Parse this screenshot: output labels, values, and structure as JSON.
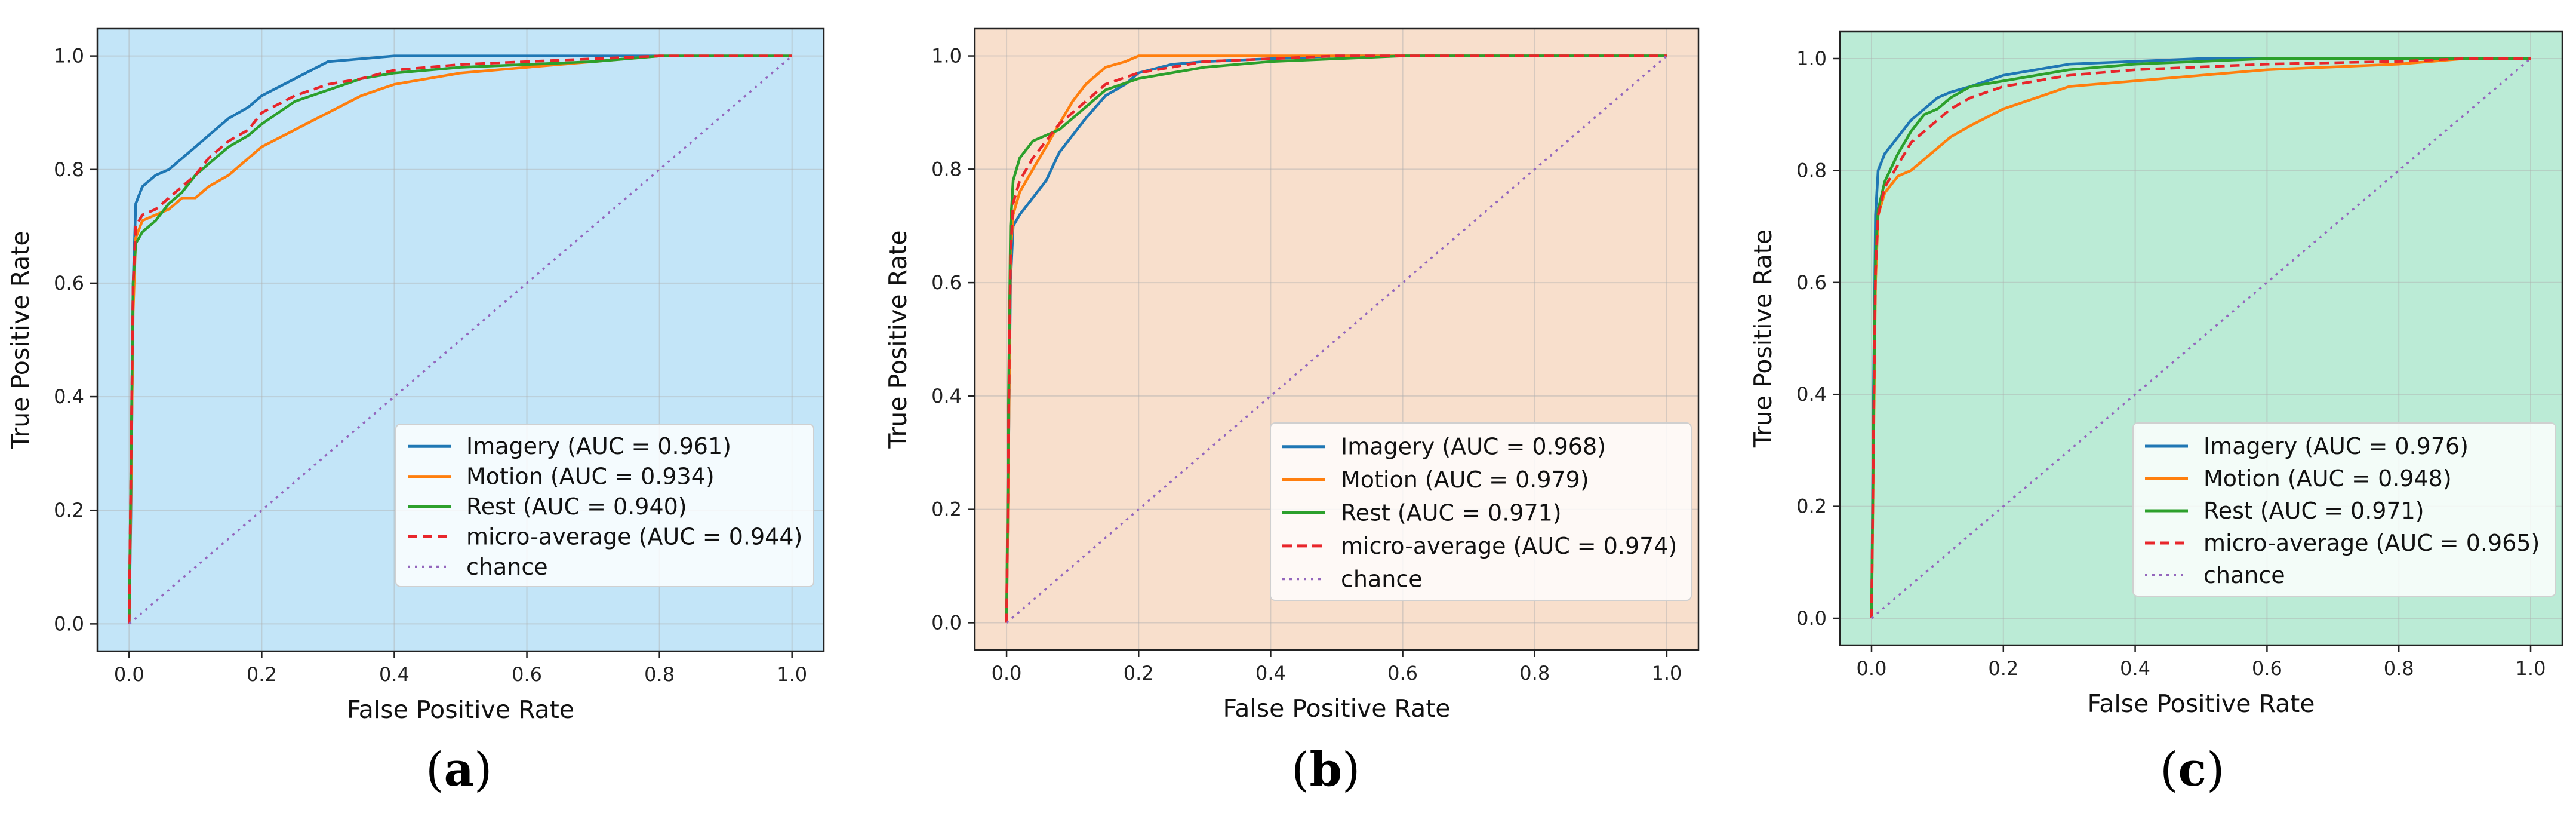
{
  "chart_data": [
    {
      "type": "line",
      "panel_label": "a",
      "background": "#c3e5f8",
      "xlabel": "False Positive Rate",
      "ylabel": "True Positive Rate",
      "xlim": [
        0,
        1
      ],
      "ylim": [
        0,
        1
      ],
      "ticks": [
        "0.0",
        "0.2",
        "0.4",
        "0.6",
        "0.8",
        "1.0"
      ],
      "grid": true,
      "legend_position": "lower-right",
      "series": [
        {
          "name": "Imagery (AUC = 0.961)",
          "color": "#1f77b4",
          "style": "solid",
          "points": [
            [
              0,
              0
            ],
            [
              0.003,
              0.22
            ],
            [
              0.006,
              0.6
            ],
            [
              0.01,
              0.74
            ],
            [
              0.02,
              0.77
            ],
            [
              0.04,
              0.79
            ],
            [
              0.06,
              0.8
            ],
            [
              0.08,
              0.82
            ],
            [
              0.1,
              0.84
            ],
            [
              0.12,
              0.86
            ],
            [
              0.15,
              0.89
            ],
            [
              0.18,
              0.91
            ],
            [
              0.2,
              0.93
            ],
            [
              0.25,
              0.96
            ],
            [
              0.3,
              0.99
            ],
            [
              0.35,
              0.995
            ],
            [
              0.4,
              1.0
            ],
            [
              1.0,
              1.0
            ]
          ]
        },
        {
          "name": "Motion (AUC = 0.934)",
          "color": "#ff7f0e",
          "style": "solid",
          "points": [
            [
              0,
              0
            ],
            [
              0.003,
              0.25
            ],
            [
              0.006,
              0.55
            ],
            [
              0.01,
              0.68
            ],
            [
              0.02,
              0.71
            ],
            [
              0.04,
              0.72
            ],
            [
              0.06,
              0.73
            ],
            [
              0.08,
              0.75
            ],
            [
              0.1,
              0.75
            ],
            [
              0.12,
              0.77
            ],
            [
              0.15,
              0.79
            ],
            [
              0.18,
              0.82
            ],
            [
              0.2,
              0.84
            ],
            [
              0.25,
              0.87
            ],
            [
              0.3,
              0.9
            ],
            [
              0.35,
              0.93
            ],
            [
              0.4,
              0.95
            ],
            [
              0.5,
              0.97
            ],
            [
              0.6,
              0.98
            ],
            [
              0.7,
              0.99
            ],
            [
              0.8,
              1.0
            ],
            [
              1.0,
              1.0
            ]
          ]
        },
        {
          "name": "Rest (AUC = 0.940)",
          "color": "#2ca02c",
          "style": "solid",
          "points": [
            [
              0,
              0
            ],
            [
              0.003,
              0.3
            ],
            [
              0.006,
              0.6
            ],
            [
              0.01,
              0.67
            ],
            [
              0.02,
              0.69
            ],
            [
              0.04,
              0.71
            ],
            [
              0.06,
              0.74
            ],
            [
              0.08,
              0.76
            ],
            [
              0.1,
              0.79
            ],
            [
              0.12,
              0.81
            ],
            [
              0.15,
              0.84
            ],
            [
              0.18,
              0.86
            ],
            [
              0.2,
              0.88
            ],
            [
              0.25,
              0.92
            ],
            [
              0.3,
              0.94
            ],
            [
              0.35,
              0.96
            ],
            [
              0.4,
              0.97
            ],
            [
              0.5,
              0.98
            ],
            [
              0.6,
              0.985
            ],
            [
              0.7,
              0.99
            ],
            [
              0.8,
              1.0
            ],
            [
              1.0,
              1.0
            ]
          ]
        },
        {
          "name": "micro-average (AUC = 0.944)",
          "color": "#e8262b",
          "style": "dashed",
          "points": [
            [
              0,
              0
            ],
            [
              0.003,
              0.3
            ],
            [
              0.006,
              0.6
            ],
            [
              0.01,
              0.7
            ],
            [
              0.02,
              0.72
            ],
            [
              0.04,
              0.73
            ],
            [
              0.06,
              0.75
            ],
            [
              0.08,
              0.77
            ],
            [
              0.1,
              0.79
            ],
            [
              0.12,
              0.82
            ],
            [
              0.15,
              0.85
            ],
            [
              0.18,
              0.87
            ],
            [
              0.2,
              0.9
            ],
            [
              0.25,
              0.93
            ],
            [
              0.3,
              0.95
            ],
            [
              0.35,
              0.96
            ],
            [
              0.4,
              0.975
            ],
            [
              0.5,
              0.985
            ],
            [
              0.6,
              0.99
            ],
            [
              0.7,
              0.995
            ],
            [
              0.8,
              1.0
            ],
            [
              1.0,
              1.0
            ]
          ]
        },
        {
          "name": "chance",
          "color": "#9467bd",
          "style": "dotted",
          "points": [
            [
              0,
              0
            ],
            [
              1,
              1
            ]
          ]
        }
      ]
    },
    {
      "type": "line",
      "panel_label": "b",
      "background": "#f8dfcc",
      "xlabel": "False Positive Rate",
      "ylabel": "True Positive Rate",
      "xlim": [
        0,
        1
      ],
      "ylim": [
        0,
        1
      ],
      "ticks": [
        "0.0",
        "0.2",
        "0.4",
        "0.6",
        "0.8",
        "1.0"
      ],
      "grid": true,
      "legend_position": "lower-right",
      "series": [
        {
          "name": "Imagery (AUC = 0.968)",
          "color": "#1f77b4",
          "style": "solid",
          "points": [
            [
              0,
              0
            ],
            [
              0.003,
              0.3
            ],
            [
              0.006,
              0.6
            ],
            [
              0.01,
              0.7
            ],
            [
              0.02,
              0.72
            ],
            [
              0.04,
              0.75
            ],
            [
              0.06,
              0.78
            ],
            [
              0.08,
              0.83
            ],
            [
              0.1,
              0.86
            ],
            [
              0.12,
              0.89
            ],
            [
              0.15,
              0.93
            ],
            [
              0.18,
              0.95
            ],
            [
              0.2,
              0.97
            ],
            [
              0.25,
              0.985
            ],
            [
              0.3,
              0.99
            ],
            [
              0.4,
              0.995
            ],
            [
              0.5,
              1.0
            ],
            [
              1.0,
              1.0
            ]
          ]
        },
        {
          "name": "Motion (AUC = 0.979)",
          "color": "#ff7f0e",
          "style": "solid",
          "points": [
            [
              0,
              0
            ],
            [
              0.003,
              0.3
            ],
            [
              0.006,
              0.65
            ],
            [
              0.01,
              0.72
            ],
            [
              0.02,
              0.76
            ],
            [
              0.04,
              0.8
            ],
            [
              0.06,
              0.84
            ],
            [
              0.08,
              0.88
            ],
            [
              0.1,
              0.92
            ],
            [
              0.12,
              0.95
            ],
            [
              0.15,
              0.98
            ],
            [
              0.18,
              0.99
            ],
            [
              0.2,
              1.0
            ],
            [
              1.0,
              1.0
            ]
          ]
        },
        {
          "name": "Rest (AUC = 0.971)",
          "color": "#2ca02c",
          "style": "solid",
          "points": [
            [
              0,
              0
            ],
            [
              0.003,
              0.4
            ],
            [
              0.006,
              0.7
            ],
            [
              0.01,
              0.78
            ],
            [
              0.02,
              0.82
            ],
            [
              0.04,
              0.85
            ],
            [
              0.06,
              0.86
            ],
            [
              0.08,
              0.87
            ],
            [
              0.1,
              0.89
            ],
            [
              0.12,
              0.91
            ],
            [
              0.15,
              0.94
            ],
            [
              0.2,
              0.96
            ],
            [
              0.25,
              0.97
            ],
            [
              0.3,
              0.98
            ],
            [
              0.4,
              0.99
            ],
            [
              0.5,
              0.995
            ],
            [
              0.6,
              1.0
            ],
            [
              1.0,
              1.0
            ]
          ]
        },
        {
          "name": "micro-average (AUC = 0.974)",
          "color": "#e8262b",
          "style": "dashed",
          "points": [
            [
              0,
              0
            ],
            [
              0.003,
              0.35
            ],
            [
              0.006,
              0.65
            ],
            [
              0.01,
              0.74
            ],
            [
              0.02,
              0.78
            ],
            [
              0.04,
              0.82
            ],
            [
              0.06,
              0.85
            ],
            [
              0.08,
              0.88
            ],
            [
              0.1,
              0.9
            ],
            [
              0.12,
              0.92
            ],
            [
              0.15,
              0.95
            ],
            [
              0.2,
              0.97
            ],
            [
              0.25,
              0.98
            ],
            [
              0.3,
              0.99
            ],
            [
              0.4,
              0.995
            ],
            [
              0.5,
              1.0
            ],
            [
              1.0,
              1.0
            ]
          ]
        },
        {
          "name": "chance",
          "color": "#9467bd",
          "style": "dotted",
          "points": [
            [
              0,
              0
            ],
            [
              1,
              1
            ]
          ]
        }
      ]
    },
    {
      "type": "line",
      "panel_label": "c",
      "background": "#bbebd6",
      "xlabel": "False Positive Rate",
      "ylabel": "True Positive Rate",
      "xlim": [
        0,
        1
      ],
      "ylim": [
        0,
        1
      ],
      "ticks": [
        "0.0",
        "0.2",
        "0.4",
        "0.6",
        "0.8",
        "1.0"
      ],
      "grid": true,
      "legend_position": "lower-right",
      "series": [
        {
          "name": "Imagery (AUC = 0.976)",
          "color": "#1f77b4",
          "style": "solid",
          "points": [
            [
              0,
              0
            ],
            [
              0.003,
              0.4
            ],
            [
              0.006,
              0.72
            ],
            [
              0.01,
              0.8
            ],
            [
              0.02,
              0.83
            ],
            [
              0.04,
              0.86
            ],
            [
              0.06,
              0.89
            ],
            [
              0.08,
              0.91
            ],
            [
              0.1,
              0.93
            ],
            [
              0.12,
              0.94
            ],
            [
              0.15,
              0.95
            ],
            [
              0.2,
              0.97
            ],
            [
              0.25,
              0.98
            ],
            [
              0.3,
              0.99
            ],
            [
              0.4,
              0.995
            ],
            [
              0.5,
              1.0
            ],
            [
              1.0,
              1.0
            ]
          ]
        },
        {
          "name": "Motion (AUC = 0.948)",
          "color": "#ff7f0e",
          "style": "solid",
          "points": [
            [
              0,
              0
            ],
            [
              0.003,
              0.3
            ],
            [
              0.006,
              0.6
            ],
            [
              0.01,
              0.72
            ],
            [
              0.02,
              0.76
            ],
            [
              0.04,
              0.79
            ],
            [
              0.06,
              0.8
            ],
            [
              0.08,
              0.82
            ],
            [
              0.1,
              0.84
            ],
            [
              0.12,
              0.86
            ],
            [
              0.15,
              0.88
            ],
            [
              0.2,
              0.91
            ],
            [
              0.25,
              0.93
            ],
            [
              0.3,
              0.95
            ],
            [
              0.4,
              0.96
            ],
            [
              0.5,
              0.97
            ],
            [
              0.6,
              0.98
            ],
            [
              0.7,
              0.985
            ],
            [
              0.8,
              0.99
            ],
            [
              0.9,
              1.0
            ],
            [
              1.0,
              1.0
            ]
          ]
        },
        {
          "name": "Rest (AUC = 0.971)",
          "color": "#2ca02c",
          "style": "solid",
          "points": [
            [
              0,
              0
            ],
            [
              0.003,
              0.35
            ],
            [
              0.006,
              0.65
            ],
            [
              0.01,
              0.73
            ],
            [
              0.02,
              0.78
            ],
            [
              0.04,
              0.83
            ],
            [
              0.06,
              0.87
            ],
            [
              0.08,
              0.9
            ],
            [
              0.1,
              0.91
            ],
            [
              0.12,
              0.93
            ],
            [
              0.15,
              0.95
            ],
            [
              0.2,
              0.96
            ],
            [
              0.25,
              0.97
            ],
            [
              0.3,
              0.98
            ],
            [
              0.4,
              0.99
            ],
            [
              0.5,
              0.995
            ],
            [
              0.6,
              1.0
            ],
            [
              1.0,
              1.0
            ]
          ]
        },
        {
          "name": "micro-average (AUC = 0.965)",
          "color": "#e8262b",
          "style": "dashed",
          "points": [
            [
              0,
              0
            ],
            [
              0.003,
              0.33
            ],
            [
              0.006,
              0.62
            ],
            [
              0.01,
              0.72
            ],
            [
              0.02,
              0.77
            ],
            [
              0.04,
              0.81
            ],
            [
              0.06,
              0.85
            ],
            [
              0.08,
              0.87
            ],
            [
              0.1,
              0.89
            ],
            [
              0.12,
              0.91
            ],
            [
              0.15,
              0.93
            ],
            [
              0.2,
              0.95
            ],
            [
              0.25,
              0.96
            ],
            [
              0.3,
              0.97
            ],
            [
              0.4,
              0.98
            ],
            [
              0.5,
              0.985
            ],
            [
              0.6,
              0.99
            ],
            [
              0.8,
              0.995
            ],
            [
              0.9,
              1.0
            ],
            [
              1.0,
              1.0
            ]
          ]
        },
        {
          "name": "chance",
          "color": "#9467bd",
          "style": "dotted",
          "points": [
            [
              0,
              0
            ],
            [
              1,
              1
            ]
          ]
        }
      ]
    }
  ]
}
